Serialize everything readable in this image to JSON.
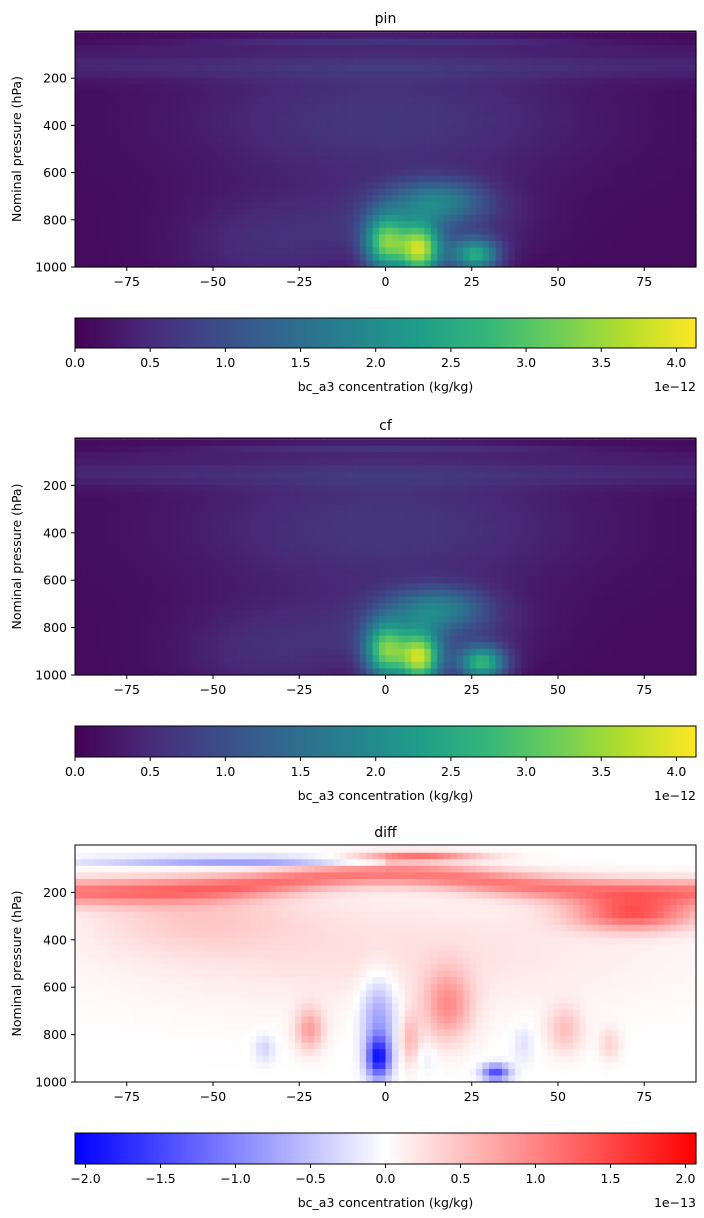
{
  "chart_data": [
    {
      "type": "heatmap",
      "title": "pin",
      "xlabel": "",
      "ylabel": "Nominal pressure (hPa)",
      "xlim": [
        -90,
        90
      ],
      "ylim": [
        1000,
        0
      ],
      "x_ticks": [
        -75,
        -50,
        -25,
        0,
        25,
        50,
        75
      ],
      "y_ticks": [
        200,
        400,
        600,
        800,
        1000
      ],
      "colormap": "viridis",
      "colorbar": {
        "orientation": "horizontal",
        "label": "bc_a3 concentration (kg/kg)",
        "range": [
          0,
          4.13
        ],
        "ticks": [
          "0.0",
          "0.5",
          "1.0",
          "1.5",
          "2.0",
          "2.5",
          "3.0",
          "3.5",
          "4.0"
        ],
        "offset_text": "1e−12"
      },
      "features": [
        {
          "lat": 10,
          "pressure": 930,
          "value": 4.1
        },
        {
          "lat": 0,
          "pressure": 900,
          "value": 3.6
        },
        {
          "lat": 26,
          "pressure": 940,
          "value": 3.0
        },
        {
          "lat": 15,
          "pressure": 720,
          "value": 2.0
        }
      ]
    },
    {
      "type": "heatmap",
      "title": "cf",
      "xlabel": "",
      "ylabel": "Nominal pressure (hPa)",
      "xlim": [
        -90,
        90
      ],
      "ylim": [
        1000,
        0
      ],
      "x_ticks": [
        -75,
        -50,
        -25,
        0,
        25,
        50,
        75
      ],
      "y_ticks": [
        200,
        400,
        600,
        800,
        1000
      ],
      "colormap": "viridis",
      "colorbar": {
        "orientation": "horizontal",
        "label": "bc_a3 concentration (kg/kg)",
        "range": [
          0,
          4.13
        ],
        "ticks": [
          "0.0",
          "0.5",
          "1.0",
          "1.5",
          "2.0",
          "2.5",
          "3.0",
          "3.5",
          "4.0"
        ],
        "offset_text": "1e−12"
      },
      "features": [
        {
          "lat": 10,
          "pressure": 930,
          "value": 4.0
        },
        {
          "lat": 0,
          "pressure": 900,
          "value": 3.6
        },
        {
          "lat": 28,
          "pressure": 950,
          "value": 3.0
        },
        {
          "lat": 15,
          "pressure": 720,
          "value": 2.0
        }
      ]
    },
    {
      "type": "heatmap",
      "title": "diff",
      "xlabel": "",
      "ylabel": "Nominal pressure (hPa)",
      "xlim": [
        -90,
        90
      ],
      "ylim": [
        1000,
        0
      ],
      "x_ticks": [
        -75,
        -50,
        -25,
        0,
        25,
        50,
        75
      ],
      "y_ticks": [
        200,
        400,
        600,
        800,
        1000
      ],
      "colormap": "bwr",
      "colorbar": {
        "orientation": "horizontal",
        "label": "bc_a3 concentration (kg/kg)",
        "range": [
          -2.07,
          2.07
        ],
        "ticks": [
          "−2.0",
          "−1.5",
          "−1.0",
          "−0.5",
          "0.0",
          "0.5",
          "1.0",
          "1.5",
          "2.0"
        ],
        "offset_text": "1e−13"
      },
      "features": [
        {
          "lat": 10,
          "pressure": 50,
          "value": 2.0
        },
        {
          "lat": -90,
          "pressure": 150,
          "value": 1.2
        },
        {
          "lat": 75,
          "pressure": 300,
          "value": 1.3
        },
        {
          "lat": -40,
          "pressure": 80,
          "value": -0.8
        },
        {
          "lat": -2,
          "pressure": 900,
          "value": -1.8
        },
        {
          "lat": 32,
          "pressure": 960,
          "value": -1.5
        },
        {
          "lat": 18,
          "pressure": 680,
          "value": 0.8
        }
      ]
    }
  ]
}
